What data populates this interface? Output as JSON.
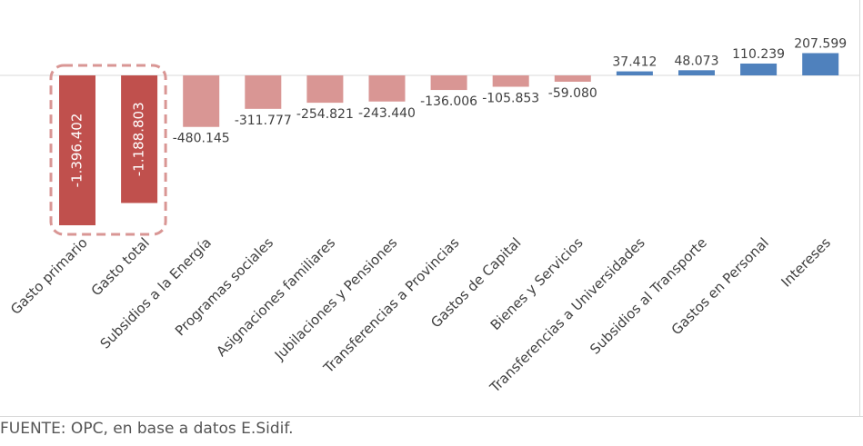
{
  "chart_data": {
    "type": "bar",
    "title": "",
    "xlabel": "",
    "ylabel": "",
    "categories": [
      "Gasto primario",
      "Gasto total",
      "Subsidios a la Energía",
      "Programas sociales",
      "Asignaciones familiares",
      "Jubilaciones y Pensiones",
      "Transferencias a Provincias",
      "Gastos de Capital",
      "Bienes y Servicios",
      "Transferencias a Universidades",
      "Subsidios al Transporte",
      "Gastos en Personal",
      "Intereses"
    ],
    "values": [
      -1396402,
      -1188803,
      -480145,
      -311777,
      -254821,
      -243440,
      -136006,
      -105853,
      -59080,
      37412,
      48073,
      110239,
      207599
    ],
    "labels": [
      "-1.396.402",
      "-1.188.803",
      "-480.145",
      "-311.777",
      "-254.821",
      "-243.440",
      "-136.006",
      "-105.853",
      "-59.080",
      "37.412",
      "48.073",
      "110.239",
      "207.599"
    ],
    "highlighted": [
      0,
      1
    ],
    "colors": {
      "highlight_negative": "#c0504d",
      "negative": "#d99694",
      "positive": "#4f81bd",
      "highlight_frame": "#d99694",
      "label_on_bar": "#ffffff",
      "label": "#404040"
    },
    "grid": false,
    "legend": "none"
  },
  "footer": {
    "source": "FUENTE: OPC, en base a datos E.Sidif."
  }
}
